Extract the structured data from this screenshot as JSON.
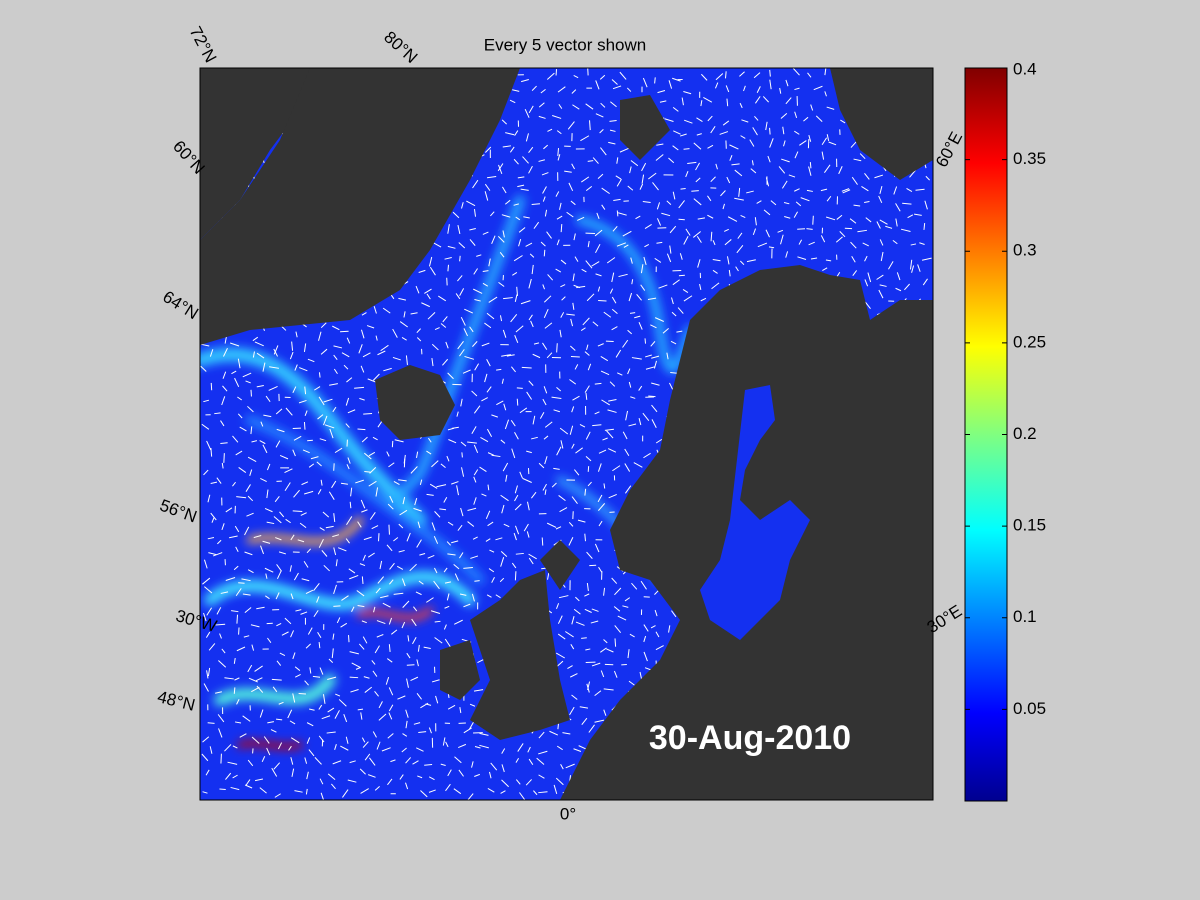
{
  "map": {
    "title": "Every 5 vector shown",
    "date": "30-Aug-2010",
    "grid_labels": [
      "72°N",
      "80°N",
      "60°N",
      "64°N",
      "56°N",
      "30°W",
      "48°N",
      "0°",
      "30°E",
      "60°E"
    ]
  },
  "colorbar": {
    "clim": [
      0,
      0.4
    ],
    "ticks": [
      0.05,
      0.1,
      0.15,
      0.2,
      0.25,
      0.3,
      0.35,
      0.4
    ]
  }
}
